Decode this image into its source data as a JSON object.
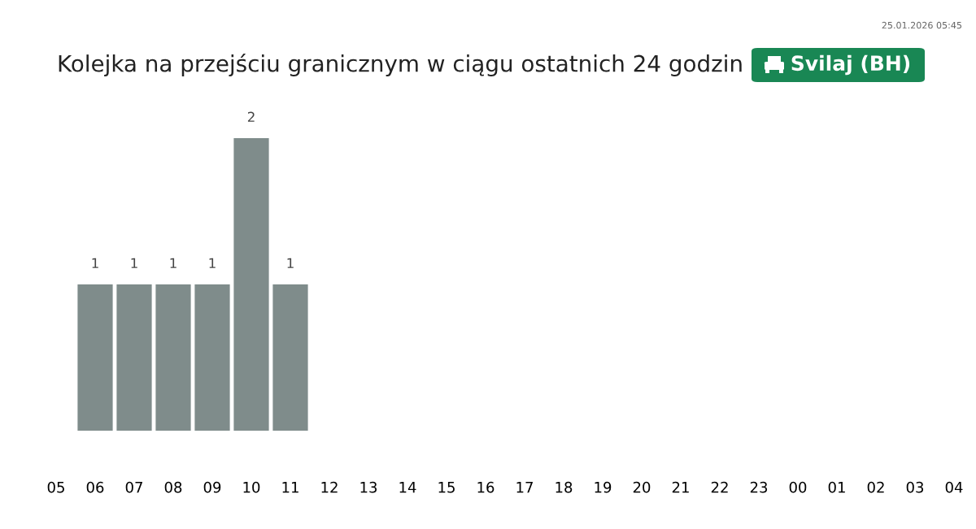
{
  "chart_data": {
    "type": "bar",
    "title": "Kolejka na przejściu granicznym w ciągu ostatnich 24 godzin",
    "subtitle": "Svilaj (BH)",
    "annotations": [
      "25.01.2026 05:45"
    ],
    "categories": [
      "05",
      "06",
      "07",
      "08",
      "09",
      "10",
      "11",
      "12",
      "13",
      "14",
      "15",
      "16",
      "17",
      "18",
      "19",
      "20",
      "21",
      "22",
      "23",
      "00",
      "01",
      "02",
      "03",
      "04"
    ],
    "values": [
      null,
      1,
      1,
      1,
      1,
      2,
      1,
      null,
      null,
      null,
      null,
      null,
      null,
      null,
      null,
      null,
      null,
      null,
      null,
      null,
      null,
      null,
      null,
      null
    ],
    "color": "#7f8c8b",
    "data_labels": true,
    "grid": false,
    "legend": false
  }
}
